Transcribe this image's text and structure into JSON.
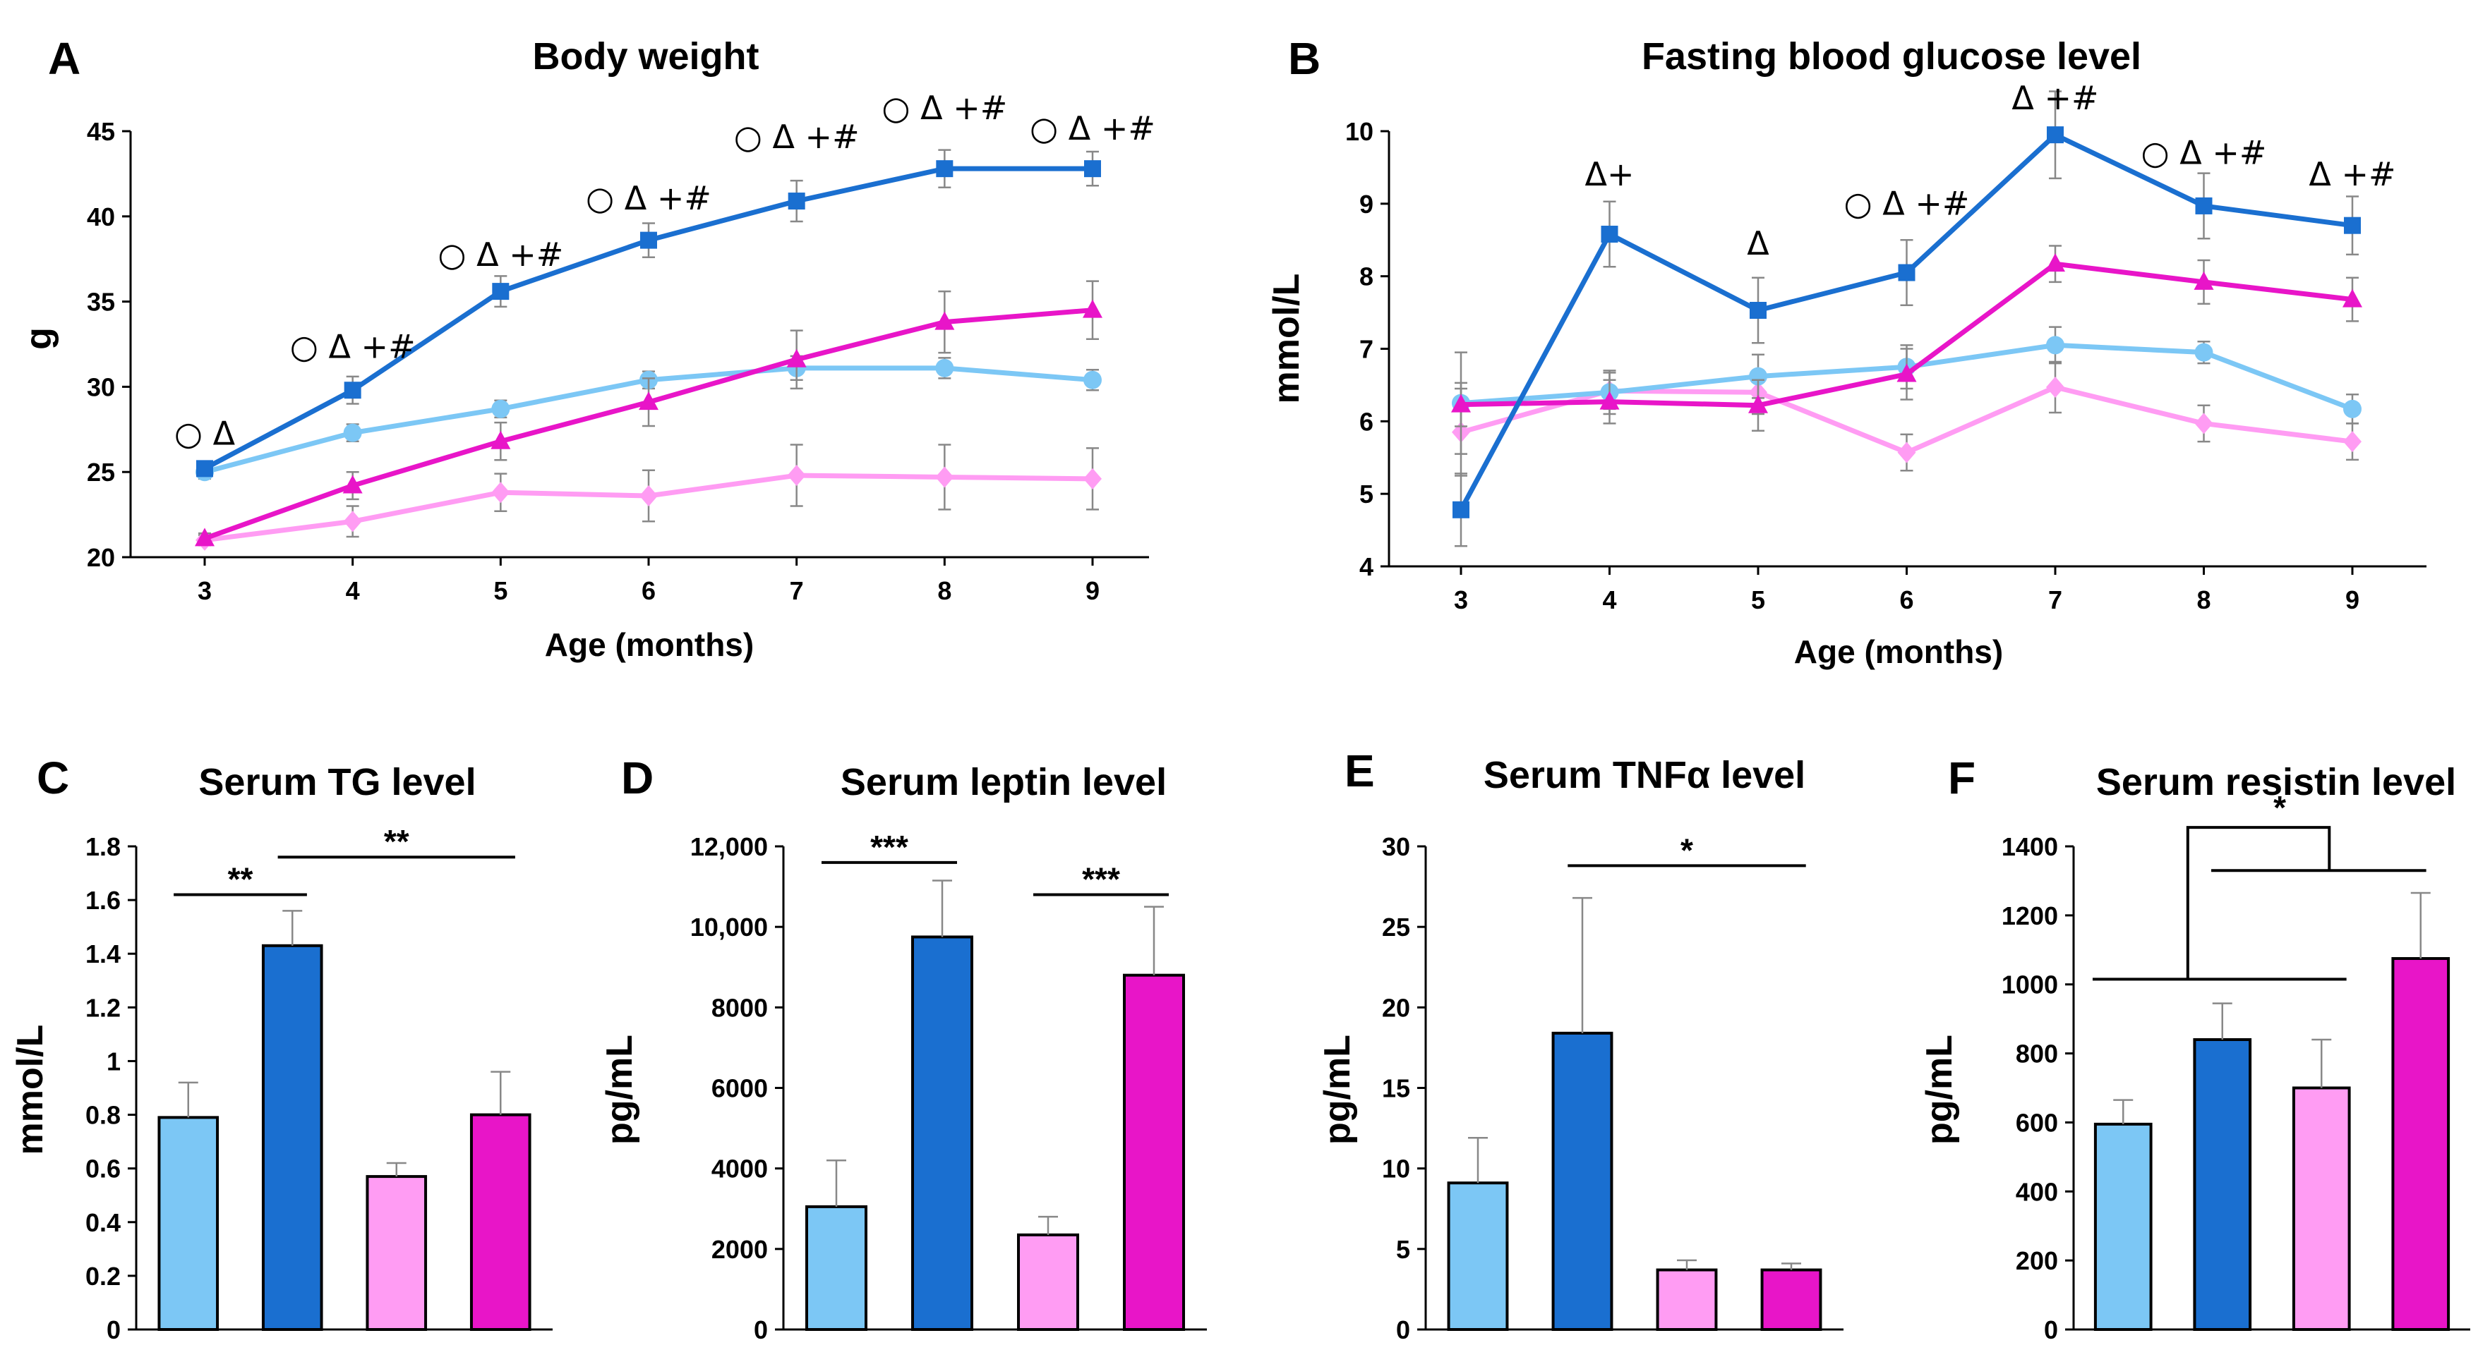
{
  "colors": {
    "light_blue": "#7CC7F5",
    "dark_blue": "#1A6FD0",
    "light_pink": "#FF9CF3",
    "magenta": "#E815C8",
    "axis": "#000000",
    "error": "#888888"
  },
  "chart_data": [
    {
      "id": "A",
      "type": "line",
      "panel_label": "A",
      "title": "Body weight",
      "xlabel": "Age (months)",
      "ylabel": "g",
      "x": [
        3,
        4,
        5,
        6,
        7,
        8,
        9
      ],
      "x_tick_labels": [
        "3",
        "4",
        "5",
        "6",
        "7",
        "8",
        "9"
      ],
      "ylim": [
        20,
        45
      ],
      "y_ticks": [
        20,
        25,
        30,
        35,
        40,
        45
      ],
      "y_tick_labels": [
        "20",
        "25",
        "30",
        "35",
        "40",
        "45"
      ],
      "series": [
        {
          "name": "light-pink",
          "color": "#FF9CF3",
          "marker": "diamond",
          "values": [
            21.0,
            22.1,
            23.8,
            23.6,
            24.8,
            24.7,
            24.6
          ],
          "errors": [
            0.3,
            0.9,
            1.1,
            1.5,
            1.8,
            1.9,
            1.8
          ]
        },
        {
          "name": "light-blue",
          "color": "#7CC7F5",
          "marker": "circle",
          "values": [
            25.0,
            27.3,
            28.7,
            30.4,
            31.1,
            31.1,
            30.4
          ],
          "errors": [
            0.4,
            0.5,
            0.5,
            0.5,
            0.7,
            0.6,
            0.6
          ]
        },
        {
          "name": "magenta",
          "color": "#E815C8",
          "marker": "triangle",
          "values": [
            21.1,
            24.2,
            26.8,
            29.1,
            31.6,
            33.8,
            34.5
          ],
          "errors": [
            0.3,
            0.8,
            1.1,
            1.4,
            1.7,
            1.8,
            1.7
          ]
        },
        {
          "name": "dark-blue",
          "color": "#1A6FD0",
          "marker": "square",
          "values": [
            25.2,
            29.8,
            35.6,
            38.6,
            40.9,
            42.8,
            42.8
          ],
          "errors": [
            0.4,
            0.8,
            0.9,
            1.0,
            1.2,
            1.1,
            1.0
          ]
        }
      ],
      "annotations": [
        {
          "x": 3,
          "y": 26.6,
          "text": "○ Δ"
        },
        {
          "x": 4,
          "y": 31.7,
          "text": "○ Δ +#"
        },
        {
          "x": 5,
          "y": 37.1,
          "text": "○ Δ +#"
        },
        {
          "x": 6,
          "y": 40.4,
          "text": "○ Δ +#"
        },
        {
          "x": 7,
          "y": 44.0,
          "text": "○ Δ +#"
        },
        {
          "x": 8,
          "y": 45.7,
          "text": "○ Δ +#"
        },
        {
          "x": 9,
          "y": 44.5,
          "text": "○ Δ +#"
        }
      ]
    },
    {
      "id": "B",
      "type": "line",
      "panel_label": "B",
      "title": "Fasting blood glucose level",
      "xlabel": "Age (months)",
      "ylabel": "mmol/L",
      "x": [
        3,
        4,
        5,
        6,
        7,
        8,
        9
      ],
      "x_tick_labels": [
        "3",
        "4",
        "5",
        "6",
        "7",
        "8",
        "9"
      ],
      "ylim": [
        4,
        10
      ],
      "y_ticks": [
        4,
        5,
        6,
        7,
        8,
        9,
        10
      ],
      "y_tick_labels": [
        "4",
        "5",
        "6",
        "7",
        "8",
        "9",
        "10"
      ],
      "series": [
        {
          "name": "light-pink",
          "color": "#FF9CF3",
          "marker": "diamond",
          "values": [
            5.85,
            6.42,
            6.4,
            5.57,
            6.47,
            5.97,
            5.72
          ],
          "errors": [
            0.6,
            0.25,
            0.3,
            0.25,
            0.35,
            0.25,
            0.25
          ]
        },
        {
          "name": "light-blue",
          "color": "#7CC7F5",
          "marker": "circle",
          "values": [
            6.25,
            6.4,
            6.62,
            6.75,
            7.05,
            6.95,
            6.17
          ],
          "errors": [
            0.7,
            0.3,
            0.3,
            0.3,
            0.25,
            0.15,
            0.2
          ]
        },
        {
          "name": "magenta",
          "color": "#E815C8",
          "marker": "triangle",
          "values": [
            6.23,
            6.27,
            6.22,
            6.65,
            8.17,
            7.92,
            7.68
          ],
          "errors": [
            0.3,
            0.3,
            0.35,
            0.35,
            0.25,
            0.3,
            0.3
          ]
        },
        {
          "name": "dark-blue",
          "color": "#1A6FD0",
          "marker": "square",
          "values": [
            4.78,
            8.58,
            7.53,
            8.05,
            9.95,
            8.97,
            8.7
          ],
          "errors": [
            0.5,
            0.45,
            0.45,
            0.45,
            0.6,
            0.45,
            0.4
          ]
        }
      ],
      "annotations": [
        {
          "x": 4,
          "y": 9.25,
          "text": "Δ+"
        },
        {
          "x": 5,
          "y": 8.3,
          "text": "Δ"
        },
        {
          "x": 6,
          "y": 8.85,
          "text": "○ Δ +#"
        },
        {
          "x": 7,
          "y": 10.3,
          "text": "Δ +#"
        },
        {
          "x": 8,
          "y": 9.55,
          "text": "○ Δ +#"
        },
        {
          "x": 9,
          "y": 9.25,
          "text": "Δ +#"
        }
      ]
    },
    {
      "id": "C",
      "type": "bar",
      "panel_label": "C",
      "title": "Serum TG level",
      "ylabel": "mmol/L",
      "ylim": [
        0,
        1.8
      ],
      "y_ticks": [
        0,
        0.2,
        0.4,
        0.6,
        0.8,
        1.0,
        1.2,
        1.4,
        1.6,
        1.8
      ],
      "y_tick_labels": [
        "0",
        "0.2",
        "0.4",
        "0.6",
        "0.8",
        "1",
        "1.2",
        "1.4",
        "1.6",
        "1.8"
      ],
      "categories": [
        "light-blue",
        "dark-blue",
        "light-pink",
        "magenta"
      ],
      "bar_colors": [
        "#7CC7F5",
        "#1A6FD0",
        "#FF9CF3",
        "#E815C8"
      ],
      "values": [
        0.79,
        1.43,
        0.57,
        0.8
      ],
      "errors": [
        0.13,
        0.13,
        0.05,
        0.16
      ],
      "significance": [
        {
          "from": 0,
          "to": 1,
          "y": 1.62,
          "text": "**"
        },
        {
          "from": 1,
          "to": 3,
          "y": 1.76,
          "text": "**"
        }
      ]
    },
    {
      "id": "D",
      "type": "bar",
      "panel_label": "D",
      "title": "Serum leptin level",
      "ylabel": "pg/mL",
      "ylim": [
        0,
        12000
      ],
      "y_ticks": [
        0,
        2000,
        4000,
        6000,
        8000,
        10000,
        12000
      ],
      "y_tick_labels": [
        "0",
        "2000",
        "4000",
        "6000",
        "8000",
        "10,000",
        "12,000"
      ],
      "categories": [
        "light-blue",
        "dark-blue",
        "light-pink",
        "magenta"
      ],
      "bar_colors": [
        "#7CC7F5",
        "#1A6FD0",
        "#FF9CF3",
        "#E815C8"
      ],
      "values": [
        3050,
        9750,
        2350,
        8800
      ],
      "errors": [
        1150,
        1400,
        450,
        1700
      ],
      "significance": [
        {
          "from": 0,
          "to": 1,
          "y": 11600,
          "text": "***"
        },
        {
          "from": 2,
          "to": 3,
          "y": 10800,
          "text": "***"
        }
      ]
    },
    {
      "id": "E",
      "type": "bar",
      "panel_label": "E",
      "title": "Serum TNFα level",
      "ylabel": "pg/mL",
      "ylim": [
        0,
        30
      ],
      "y_ticks": [
        0,
        5,
        10,
        15,
        20,
        25,
        30
      ],
      "y_tick_labels": [
        "0",
        "5",
        "10",
        "15",
        "20",
        "25",
        "30"
      ],
      "categories": [
        "light-blue",
        "dark-blue",
        "light-pink",
        "magenta"
      ],
      "bar_colors": [
        "#7CC7F5",
        "#1A6FD0",
        "#FF9CF3",
        "#E815C8"
      ],
      "values": [
        9.1,
        18.4,
        3.7,
        3.7
      ],
      "errors": [
        2.8,
        8.4,
        0.6,
        0.4
      ],
      "significance": [
        {
          "from": 1,
          "to": 3,
          "y": 28.8,
          "text": "*"
        }
      ]
    },
    {
      "id": "F",
      "type": "bar",
      "panel_label": "F",
      "title": "Serum resistin level",
      "ylabel": "pg/mL",
      "ylim": [
        0,
        1400
      ],
      "y_ticks": [
        0,
        200,
        400,
        600,
        800,
        1000,
        1200,
        1400
      ],
      "y_tick_labels": [
        "0",
        "200",
        "400",
        "600",
        "800",
        "1000",
        "1200",
        "1400"
      ],
      "categories": [
        "light-blue",
        "dark-blue",
        "light-pink",
        "magenta"
      ],
      "bar_colors": [
        "#7CC7F5",
        "#1A6FD0",
        "#FF9CF3",
        "#E815C8"
      ],
      "values": [
        595,
        840,
        700,
        1075
      ],
      "errors": [
        70,
        105,
        140,
        190
      ],
      "significance": [
        {
          "type": "grouped",
          "groupA": [
            0,
            2
          ],
          "groupB": [
            1,
            3
          ],
          "lineA_y": 1015,
          "lineB_y": 1330,
          "top_y": 1455,
          "text": "*"
        }
      ]
    }
  ]
}
